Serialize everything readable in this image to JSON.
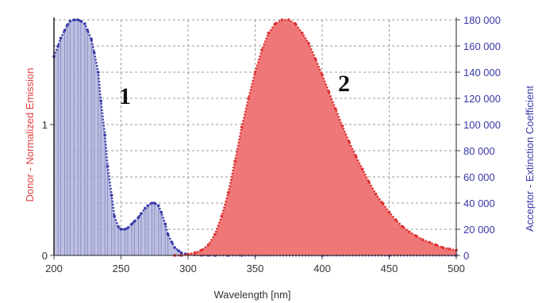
{
  "chart_data": {
    "type": "area",
    "xlabel": "Wavelength [nm]",
    "ylabel_left": "Donor  -  Normalized Emission",
    "ylabel_right": "Acceptor  -  Extinction Coefficient",
    "xlim": [
      200,
      500
    ],
    "ylim_left": [
      0,
      1.8
    ],
    "ylim_right": [
      0,
      180000
    ],
    "x_ticks": [
      200,
      250,
      300,
      350,
      400,
      450,
      500
    ],
    "y_left_ticks": [
      {
        "value": 0,
        "label": "0"
      },
      {
        "value": 1,
        "label": "1"
      }
    ],
    "y_right_ticks": [
      {
        "value": 0,
        "label": "0"
      },
      {
        "value": 20000,
        "label": "20 000"
      },
      {
        "value": 40000,
        "label": "40 000"
      },
      {
        "value": 60000,
        "label": "60 000"
      },
      {
        "value": 80000,
        "label": "80 000"
      },
      {
        "value": 100000,
        "label": "100 000"
      },
      {
        "value": 120000,
        "label": "120 000"
      },
      {
        "value": 140000,
        "label": "140 000"
      },
      {
        "value": 160000,
        "label": "160 000"
      },
      {
        "value": 180000,
        "label": "180 000"
      }
    ],
    "grid": true,
    "panel_labels": [
      "1",
      "2"
    ],
    "colors": {
      "acceptor": "#3a3aa8",
      "acceptor_fill": "#aeb0da",
      "donor": "#dd3030",
      "donor_fill": "#ee7070",
      "grid": "#9a9a9a"
    },
    "series": [
      {
        "axis": "right",
        "x": [
          200,
          203,
          205,
          208,
          210,
          212,
          215,
          218,
          220,
          223,
          225,
          228,
          230,
          233,
          235,
          238,
          240,
          243,
          245,
          248,
          250,
          253,
          255,
          258,
          260,
          263,
          265,
          268,
          270,
          273,
          275,
          278,
          280,
          283,
          285,
          288,
          290,
          293,
          295,
          298,
          300,
          305,
          310,
          315,
          320,
          330,
          340,
          350,
          400,
          450,
          500
        ],
        "values": [
          152000,
          160000,
          166000,
          172000,
          176000,
          179000,
          180000,
          180000,
          179000,
          177000,
          172000,
          165000,
          155000,
          140000,
          118000,
          92000,
          68000,
          46000,
          30000,
          22000,
          20000,
          20000,
          21000,
          24000,
          26000,
          29000,
          32000,
          36000,
          38000,
          40000,
          40000,
          38000,
          33000,
          24000,
          16000,
          10000,
          6000,
          3500,
          2000,
          1200,
          800,
          400,
          200,
          100,
          50,
          0,
          0,
          0,
          0,
          0,
          0
        ]
      },
      {
        "axis": "left",
        "x": [
          290,
          295,
          300,
          305,
          310,
          315,
          320,
          325,
          330,
          335,
          340,
          345,
          350,
          355,
          360,
          365,
          370,
          375,
          380,
          385,
          390,
          395,
          400,
          405,
          410,
          415,
          420,
          425,
          430,
          435,
          440,
          445,
          450,
          455,
          460,
          465,
          470,
          475,
          480,
          485,
          490,
          495,
          500
        ],
        "values": [
          0,
          0,
          0.01,
          0.02,
          0.04,
          0.08,
          0.16,
          0.3,
          0.48,
          0.72,
          0.98,
          1.2,
          1.4,
          1.57,
          1.7,
          1.77,
          1.8,
          1.8,
          1.77,
          1.7,
          1.62,
          1.5,
          1.38,
          1.25,
          1.12,
          0.99,
          0.87,
          0.76,
          0.66,
          0.56,
          0.47,
          0.4,
          0.33,
          0.27,
          0.22,
          0.18,
          0.15,
          0.12,
          0.1,
          0.08,
          0.06,
          0.05,
          0.04
        ]
      }
    ]
  }
}
